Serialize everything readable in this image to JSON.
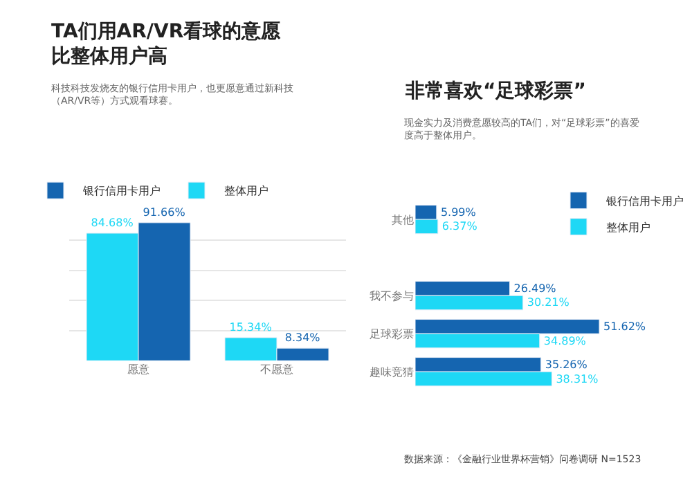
{
  "chart_data": [
    {
      "type": "bar",
      "title": "TA们用AR/VR看球的意愿比整体用户高",
      "subtitle": "科技科技发烧友的银行信用卡用户，也更愿意通过新科技（AR/VR等）方式观看球赛。",
      "categories": [
        "愿意",
        "不愿意"
      ],
      "series": [
        {
          "name": "整体用户",
          "color": "#1ed8f5",
          "values": [
            84.68,
            15.34
          ],
          "value_labels": [
            "84.68%",
            "15.34%"
          ]
        },
        {
          "name": "银行信用卡用户",
          "color": "#1565b0",
          "values": [
            91.66,
            8.34
          ],
          "value_labels": [
            "91.66%",
            "8.34%"
          ]
        }
      ],
      "grid": "y",
      "tick_labels": "x",
      "legend": "top left"
    },
    {
      "type": "bar",
      "orientation": "horizontal",
      "title": "非常喜欢“足球彩票”",
      "subtitle": "现金实力及消费意愿较高的TA们，对“足球彩票”的喜爱度高于整体用户。",
      "categories": [
        "其他",
        null,
        "我不参与",
        "足球彩票",
        "趣味竞猜"
      ],
      "series": [
        {
          "name": "银行信用卡用户",
          "color": "#1565b0",
          "values": [
            5.99,
            null,
            26.49,
            51.62,
            35.26
          ],
          "value_labels": [
            "5.99%",
            null,
            "26.49%",
            "51.62%",
            "35.26%"
          ]
        },
        {
          "name": "整体用户",
          "color": "#1ed8f5",
          "values": [
            6.37,
            null,
            30.21,
            34.89,
            38.31
          ],
          "value_labels": [
            "6.37%",
            null,
            "30.21%",
            "34.89%",
            "38.31%"
          ]
        }
      ],
      "grid": false,
      "tick_labels": "y",
      "legend": "top right",
      "annotations": [
        "数据来源：《金融行业世界杯营销》问卷调研 N=1523"
      ]
    }
  ]
}
